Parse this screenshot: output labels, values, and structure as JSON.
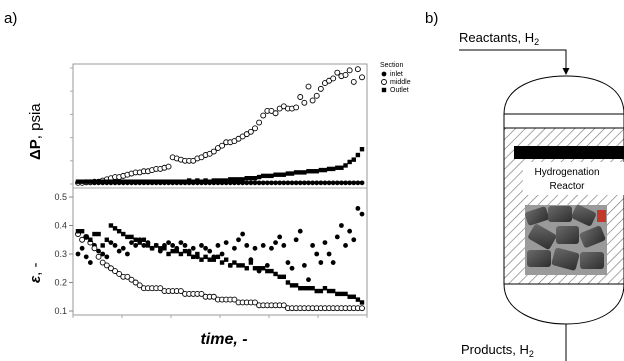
{
  "panels": {
    "a": "a)",
    "b": "b)"
  },
  "chart_data": {
    "type": "scatter",
    "x_label": "time, -",
    "x_label_style": "bold italic",
    "panel_label": "a)",
    "grid": false,
    "legend_placement": "right-top",
    "legend": {
      "title": "Section",
      "entries": [
        {
          "name": "inlet",
          "marker": "filled circle"
        },
        {
          "name": "middle",
          "marker": "open circle"
        },
        {
          "name": "Outlet",
          "marker": "filled square"
        }
      ]
    },
    "subplots": [
      {
        "id": "pressure_drop",
        "ylabel_main": "ΔP",
        "ylabel_unit": ", psia",
        "ylim": [
          0,
          10
        ],
        "y_tick_labels_shown": false,
        "x": [
          1,
          2,
          3,
          4,
          5,
          6,
          7,
          8,
          9,
          10,
          11,
          12,
          13,
          14,
          15,
          16,
          17,
          18,
          19,
          20,
          21,
          22,
          23,
          24,
          25,
          26,
          27,
          28,
          29,
          30,
          31,
          32,
          33,
          34,
          35,
          36,
          37,
          38,
          39,
          40,
          41,
          42,
          43,
          44,
          45,
          46,
          47,
          48,
          49,
          50,
          51,
          52,
          53,
          54,
          55,
          56,
          57,
          58,
          59,
          60,
          61,
          62,
          63,
          64,
          65,
          66,
          67,
          68,
          69,
          70
        ],
        "series": [
          {
            "name": "inlet",
            "values": [
              0.1,
              0.1,
              0.1,
              0.1,
              0.1,
              0.1,
              0.1,
              0.1,
              0.1,
              0.1,
              0.1,
              0.1,
              0.1,
              0.1,
              0.1,
              0.1,
              0.1,
              0.1,
              0.1,
              0.1,
              0.1,
              0.1,
              0.1,
              0.1,
              0.1,
              0.1,
              0.1,
              0.1,
              0.1,
              0.1,
              0.1,
              0.1,
              0.1,
              0.1,
              0.1,
              0.1,
              0.1,
              0.1,
              0.1,
              0.1,
              0.1,
              0.1,
              0.1,
              0.1,
              0.1,
              0.1,
              0.1,
              0.1,
              0.1,
              0.1,
              0.1,
              0.1,
              0.1,
              0.1,
              0.1,
              0.1,
              0.1,
              0.1,
              0.1,
              0.1,
              0.1,
              0.1,
              0.1,
              0.1,
              0.1,
              0.1,
              0.1,
              0.1,
              0.1,
              0.1
            ]
          },
          {
            "name": "middle",
            "values": [
              0.1,
              0.1,
              0.15,
              0.15,
              0.2,
              0.2,
              0.3,
              0.4,
              0.5,
              0.6,
              0.6,
              0.7,
              0.8,
              0.9,
              1.0,
              1.0,
              1.1,
              1.1,
              1.2,
              1.3,
              1.3,
              1.4,
              1.5,
              2.3,
              2.2,
              2.1,
              2.0,
              2.0,
              2.0,
              2.2,
              2.3,
              2.5,
              2.6,
              2.8,
              3.1,
              3.3,
              3.6,
              3.6,
              3.7,
              3.9,
              4.1,
              4.3,
              4.5,
              4.8,
              5.3,
              5.9,
              6.3,
              6.3,
              6.1,
              6.5,
              6.7,
              6.5,
              6.5,
              6.6,
              7.5,
              7.0,
              8.4,
              7.2,
              7.6,
              8.2,
              8.7,
              8.9,
              9.1,
              9.6,
              9.3,
              9.4,
              9.8,
              8.8,
              9.9,
              9.2
            ]
          },
          {
            "name": "Outlet",
            "values": [
              0.2,
              0.2,
              0.2,
              0.2,
              0.2,
              0.2,
              0.2,
              0.2,
              0.2,
              0.2,
              0.2,
              0.2,
              0.2,
              0.2,
              0.2,
              0.2,
              0.2,
              0.2,
              0.2,
              0.2,
              0.2,
              0.2,
              0.2,
              0.2,
              0.2,
              0.2,
              0.2,
              0.3,
              0.2,
              0.3,
              0.2,
              0.3,
              0.2,
              0.3,
              0.3,
              0.3,
              0.3,
              0.4,
              0.4,
              0.4,
              0.4,
              0.5,
              0.5,
              0.5,
              0.6,
              0.7,
              0.7,
              0.7,
              0.8,
              0.8,
              0.8,
              0.9,
              0.9,
              1.0,
              1.0,
              1.0,
              1.1,
              1.1,
              1.1,
              1.2,
              1.2,
              1.3,
              1.3,
              1.4,
              1.4,
              1.6,
              1.9,
              2.1,
              2.5,
              3.0
            ]
          }
        ]
      },
      {
        "id": "porosity",
        "ylabel_main": "ε",
        "ylabel_unit": ", -",
        "ylim": [
          0.1,
          0.5
        ],
        "y_ticks": [
          0.1,
          0.2,
          0.3,
          0.4,
          0.5
        ],
        "y_tick_labels": [
          "0.1",
          "0.2",
          "0.3",
          "0.4",
          "0.5"
        ],
        "x": [
          1,
          2,
          3,
          4,
          5,
          6,
          7,
          8,
          9,
          10,
          11,
          12,
          13,
          14,
          15,
          16,
          17,
          18,
          19,
          20,
          21,
          22,
          23,
          24,
          25,
          26,
          27,
          28,
          29,
          30,
          31,
          32,
          33,
          34,
          35,
          36,
          37,
          38,
          39,
          40,
          41,
          42,
          43,
          44,
          45,
          46,
          47,
          48,
          49,
          50,
          51,
          52,
          53,
          54,
          55,
          56,
          57,
          58,
          59,
          60,
          61,
          62,
          63,
          64,
          65,
          66,
          67,
          68,
          69,
          70
        ],
        "series": [
          {
            "name": "inlet",
            "values": [
              0.3,
              0.32,
              0.29,
              0.27,
              0.33,
              0.31,
              0.3,
              0.29,
              0.34,
              0.33,
              0.31,
              0.32,
              0.3,
              0.34,
              0.33,
              0.35,
              0.33,
              0.34,
              0.32,
              0.33,
              0.31,
              0.33,
              0.34,
              0.33,
              0.32,
              0.34,
              0.33,
              0.31,
              0.32,
              0.29,
              0.33,
              0.32,
              0.31,
              0.29,
              0.33,
              0.3,
              0.34,
              0.26,
              0.32,
              0.35,
              0.37,
              0.33,
              0.28,
              0.32,
              0.24,
              0.33,
              0.26,
              0.32,
              0.34,
              0.36,
              0.33,
              0.27,
              0.25,
              0.35,
              0.38,
              0.26,
              0.21,
              0.33,
              0.3,
              0.27,
              0.34,
              0.3,
              0.27,
              0.36,
              0.4,
              0.33,
              0.38,
              0.35,
              0.46,
              0.44
            ]
          },
          {
            "name": "middle",
            "values": [
              0.37,
              0.35,
              0.36,
              0.34,
              0.32,
              0.29,
              0.27,
              0.26,
              0.25,
              0.24,
              0.23,
              0.22,
              0.22,
              0.21,
              0.2,
              0.19,
              0.18,
              0.18,
              0.18,
              0.18,
              0.18,
              0.17,
              0.17,
              0.17,
              0.17,
              0.17,
              0.16,
              0.16,
              0.16,
              0.16,
              0.16,
              0.15,
              0.15,
              0.15,
              0.14,
              0.14,
              0.14,
              0.14,
              0.14,
              0.13,
              0.13,
              0.13,
              0.13,
              0.13,
              0.12,
              0.12,
              0.12,
              0.12,
              0.12,
              0.12,
              0.12,
              0.11,
              0.11,
              0.11,
              0.11,
              0.11,
              0.11,
              0.11,
              0.11,
              0.11,
              0.11,
              0.11,
              0.11,
              0.11,
              0.11,
              0.11,
              0.11,
              0.11,
              0.11,
              0.11
            ]
          },
          {
            "name": "Outlet",
            "values": [
              0.38,
              0.38,
              0.36,
              0.35,
              0.37,
              0.37,
              0.33,
              0.35,
              0.4,
              0.39,
              0.38,
              0.37,
              0.36,
              0.36,
              0.35,
              0.34,
              0.35,
              0.33,
              0.32,
              0.33,
              0.32,
              0.32,
              0.3,
              0.31,
              0.31,
              0.3,
              0.31,
              0.3,
              0.29,
              0.3,
              0.28,
              0.29,
              0.28,
              0.28,
              0.29,
              0.27,
              0.28,
              0.26,
              0.27,
              0.26,
              0.26,
              0.25,
              0.27,
              0.25,
              0.25,
              0.25,
              0.24,
              0.24,
              0.23,
              0.22,
              0.22,
              0.2,
              0.19,
              0.19,
              0.18,
              0.18,
              0.18,
              0.18,
              0.17,
              0.17,
              0.18,
              0.17,
              0.17,
              0.16,
              0.16,
              0.16,
              0.15,
              0.15,
              0.14,
              0.13
            ]
          }
        ]
      }
    ]
  },
  "diagram": {
    "panel_label": "b)",
    "inlet_label": "Reactants, H",
    "inlet_label_sub": "2",
    "reactor_label_line1": "Hydrogenation",
    "reactor_label_line2": "Reactor",
    "outlet_label": "Products, H",
    "outlet_label_sub": "2"
  },
  "colors": {
    "marker": "#000000",
    "axis": "#888888",
    "catalyst_band": "#000000",
    "hatch": "#777777"
  }
}
